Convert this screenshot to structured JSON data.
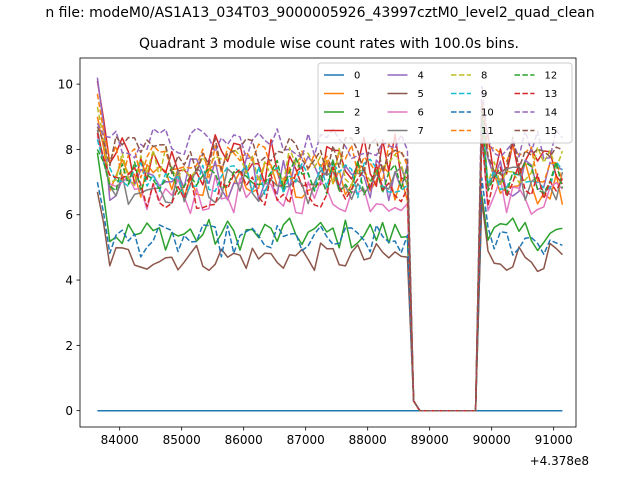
{
  "figure": {
    "suptitle": "n file: modeM0/AS1A13_034T03_9000005926_43997cztM0_level2_quad_clean",
    "title": "Quadrant 3 module wise count rates with 100.0s bins."
  },
  "chart_data": {
    "type": "line",
    "title": "Quadrant 3 module wise count rates with 100.0s bins.",
    "xlabel": "",
    "ylabel": "",
    "x_offset_label": "+4.378e8",
    "x_offset": 437800000,
    "xlim": [
      83360,
      91360
    ],
    "ylim": [
      -0.5,
      10.8
    ],
    "xticks": [
      84000,
      85000,
      86000,
      87000,
      88000,
      89000,
      90000,
      91000
    ],
    "xtick_labels": [
      "84000",
      "85000",
      "86000",
      "87000",
      "88000",
      "89000",
      "90000",
      "91000"
    ],
    "yticks": [
      0,
      2,
      4,
      6,
      8,
      10
    ],
    "ytick_labels": [
      "0",
      "2",
      "4",
      "6",
      "8",
      "10"
    ],
    "grid": false,
    "legend_position": "upper right",
    "legend_columns": 4,
    "x_start": 83640,
    "x_step": 100,
    "n_bins": 76,
    "gap": {
      "drop_start": 88640,
      "zero_from": 88840,
      "zero_to": 89740,
      "recover": 89840
    },
    "series": [
      {
        "name": "0",
        "color": "#1f77b4",
        "dash": "solid",
        "level": 0.0,
        "spread": 0.0,
        "start": 0.0
      },
      {
        "name": "1",
        "color": "#ff7f0e",
        "dash": "solid",
        "level": 7.0,
        "spread": 0.35,
        "start": 9.0
      },
      {
        "name": "2",
        "color": "#2ca02c",
        "dash": "solid",
        "level": 5.4,
        "spread": 0.25,
        "start": 7.9
      },
      {
        "name": "3",
        "color": "#d62728",
        "dash": "solid",
        "level": 7.6,
        "spread": 0.45,
        "start": 10.1
      },
      {
        "name": "4",
        "color": "#9467bd",
        "dash": "solid",
        "level": 7.1,
        "spread": 0.35,
        "start": 10.2
      },
      {
        "name": "5",
        "color": "#8c564b",
        "dash": "solid",
        "level": 4.7,
        "spread": 0.22,
        "start": 6.7
      },
      {
        "name": "6",
        "color": "#e377c2",
        "dash": "solid",
        "level": 6.6,
        "spread": 0.3,
        "start": 8.4
      },
      {
        "name": "7",
        "color": "#7f7f7f",
        "dash": "solid",
        "level": 6.9,
        "spread": 0.3,
        "start": 8.6
      },
      {
        "name": "8",
        "color": "#bcbd22",
        "dash": "dashed",
        "level": 7.5,
        "spread": 0.3,
        "start": 9.3
      },
      {
        "name": "9",
        "color": "#17becf",
        "dash": "dashed",
        "level": 7.1,
        "spread": 0.3,
        "start": 8.3
      },
      {
        "name": "10",
        "color": "#1f77b4",
        "dash": "dashed",
        "level": 5.2,
        "spread": 0.25,
        "start": 7.0
      },
      {
        "name": "11",
        "color": "#ff7f0e",
        "dash": "dashed",
        "level": 7.6,
        "spread": 0.3,
        "start": 9.7
      },
      {
        "name": "12",
        "color": "#2ca02c",
        "dash": "dashed",
        "level": 7.2,
        "spread": 0.3,
        "start": 8.0
      },
      {
        "name": "13",
        "color": "#d62728",
        "dash": "dashed",
        "level": 6.9,
        "spread": 0.35,
        "start": 8.5
      },
      {
        "name": "14",
        "color": "#9467bd",
        "dash": "dashed",
        "level": 8.2,
        "spread": 0.25,
        "start": 8.8
      },
      {
        "name": "15",
        "color": "#8c564b",
        "dash": "dashed",
        "level": 7.8,
        "spread": 0.3,
        "start": 8.7
      }
    ]
  }
}
